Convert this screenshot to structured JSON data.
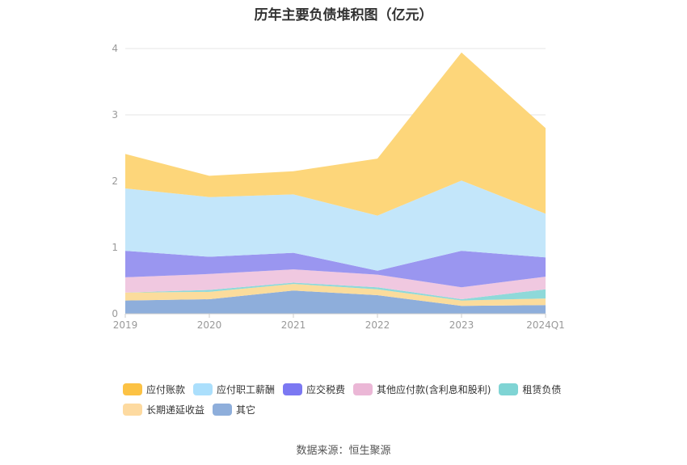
{
  "chart_data": {
    "type": "area",
    "title": "历年主要负债堆积图（亿元）",
    "stacked": true,
    "x": [
      "2019",
      "2020",
      "2021",
      "2022",
      "2023",
      "2024Q1"
    ],
    "ylim": [
      0,
      4
    ],
    "yticks": [
      "0",
      "1",
      "2",
      "3",
      "4"
    ],
    "grid": true,
    "legend_position": "bottom",
    "series": [
      {
        "name": "其它",
        "color": "#8eaedb",
        "values": [
          0.2,
          0.22,
          0.35,
          0.28,
          0.12,
          0.13
        ]
      },
      {
        "name": "长期递延收益",
        "color": "#fbdc9c",
        "values": [
          0.12,
          0.11,
          0.1,
          0.09,
          0.08,
          0.1
        ]
      },
      {
        "name": "租赁负债",
        "color": "#8ed9d9",
        "values": [
          0.0,
          0.03,
          0.02,
          0.03,
          0.02,
          0.14
        ]
      },
      {
        "name": "其他应付款(含利息和股利)",
        "color": "#f0c8e0",
        "values": [
          0.23,
          0.24,
          0.2,
          0.19,
          0.18,
          0.19
        ]
      },
      {
        "name": "应交税费",
        "color": "#9a96f0",
        "values": [
          0.4,
          0.26,
          0.25,
          0.06,
          0.55,
          0.29
        ]
      },
      {
        "name": "应付职工薪酬",
        "color": "#c3e6fa",
        "values": [
          0.94,
          0.9,
          0.88,
          0.83,
          1.06,
          0.66
        ]
      },
      {
        "name": "应付账款",
        "color": "#fdd67a",
        "values": [
          0.52,
          0.32,
          0.35,
          0.86,
          1.93,
          1.29
        ]
      }
    ]
  },
  "legend": [
    {
      "label": "应付账款",
      "color": "#fcc244"
    },
    {
      "label": "应付职工薪酬",
      "color": "#abdffc"
    },
    {
      "label": "应交税费",
      "color": "#7b78f2"
    },
    {
      "label": "其他应付款(含利息和股利)",
      "color": "#ebb7d6"
    },
    {
      "label": "租赁负债",
      "color": "#7fd4d4"
    },
    {
      "label": "长期递延收益",
      "color": "#fddaa0"
    },
    {
      "label": "其它",
      "color": "#8eaedb"
    }
  ],
  "source": "数据来源：恒生聚源"
}
